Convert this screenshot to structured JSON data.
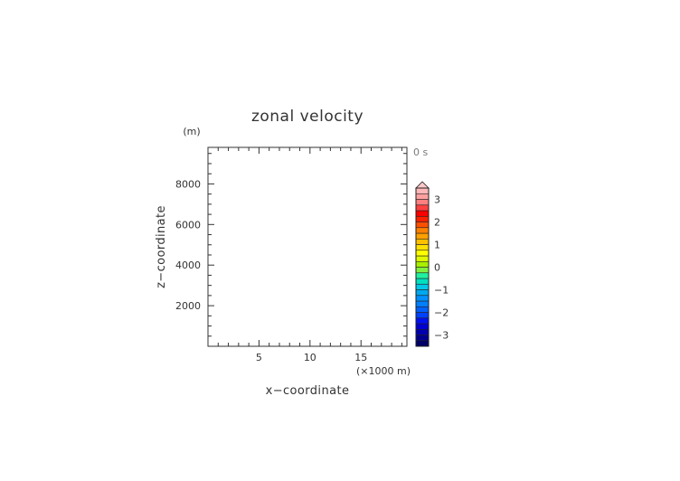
{
  "chart_data": {
    "type": "heatmap",
    "title": "zonal velocity",
    "xlabel": "x−coordinate",
    "ylabel": "z−coordinate",
    "x_unit": "(×1000 m)",
    "y_unit": "(m)",
    "time_label": "0 s",
    "x_ticks": [
      {
        "value": 5,
        "label": "5"
      },
      {
        "value": 10,
        "label": "10"
      },
      {
        "value": 15,
        "label": "15"
      }
    ],
    "y_ticks": [
      {
        "value": 2000,
        "label": "2000"
      },
      {
        "value": 4000,
        "label": "4000"
      },
      {
        "value": 6000,
        "label": "6000"
      },
      {
        "value": 8000,
        "label": "8000"
      }
    ],
    "xlim": [
      0,
      19.5
    ],
    "ylim": [
      0,
      9800
    ],
    "x_minor_step": 1,
    "y_minor_step": 500,
    "field_values": [],
    "colorbar": {
      "range": [
        -3.5,
        3.5
      ],
      "levels": [
        {
          "value": -3.5,
          "color": "#000066"
        },
        {
          "value": -3.25,
          "color": "#00008c"
        },
        {
          "value": -3.0,
          "color": "#0000b0"
        },
        {
          "value": -2.75,
          "color": "#0000d4"
        },
        {
          "value": -2.5,
          "color": "#0010f0"
        },
        {
          "value": -2.25,
          "color": "#0040ff"
        },
        {
          "value": -2.0,
          "color": "#0060ff"
        },
        {
          "value": -1.75,
          "color": "#0080ff"
        },
        {
          "value": -1.5,
          "color": "#0090ff"
        },
        {
          "value": -1.25,
          "color": "#00a8f0"
        },
        {
          "value": -1.0,
          "color": "#00c8e8"
        },
        {
          "value": -0.75,
          "color": "#00e0c0"
        },
        {
          "value": -0.5,
          "color": "#20f0a0"
        },
        {
          "value": -0.25,
          "color": "#80f040"
        },
        {
          "value": 0.0,
          "color": "#a8f000"
        },
        {
          "value": 0.25,
          "color": "#e0f800"
        },
        {
          "value": 0.5,
          "color": "#ffff00"
        },
        {
          "value": 0.75,
          "color": "#ffe000"
        },
        {
          "value": 1.0,
          "color": "#ffc000"
        },
        {
          "value": 1.25,
          "color": "#ffa000"
        },
        {
          "value": 1.5,
          "color": "#ff8000"
        },
        {
          "value": 1.75,
          "color": "#ff5000"
        },
        {
          "value": 2.0,
          "color": "#ff2000"
        },
        {
          "value": 2.25,
          "color": "#ff0000"
        },
        {
          "value": 2.5,
          "color": "#ff4040"
        },
        {
          "value": 2.75,
          "color": "#ff8080"
        },
        {
          "value": 3.0,
          "color": "#ffa0a0"
        },
        {
          "value": 3.25,
          "color": "#ffb8b8"
        }
      ],
      "extend_max_color": "#ffc8c8",
      "tick_labels": [
        {
          "value": -3,
          "label": "−3"
        },
        {
          "value": -2,
          "label": "−2"
        },
        {
          "value": -1,
          "label": "−1"
        },
        {
          "value": 0,
          "label": "0"
        },
        {
          "value": 1,
          "label": "1"
        },
        {
          "value": 2,
          "label": "2"
        },
        {
          "value": 3,
          "label": "3"
        }
      ]
    }
  }
}
